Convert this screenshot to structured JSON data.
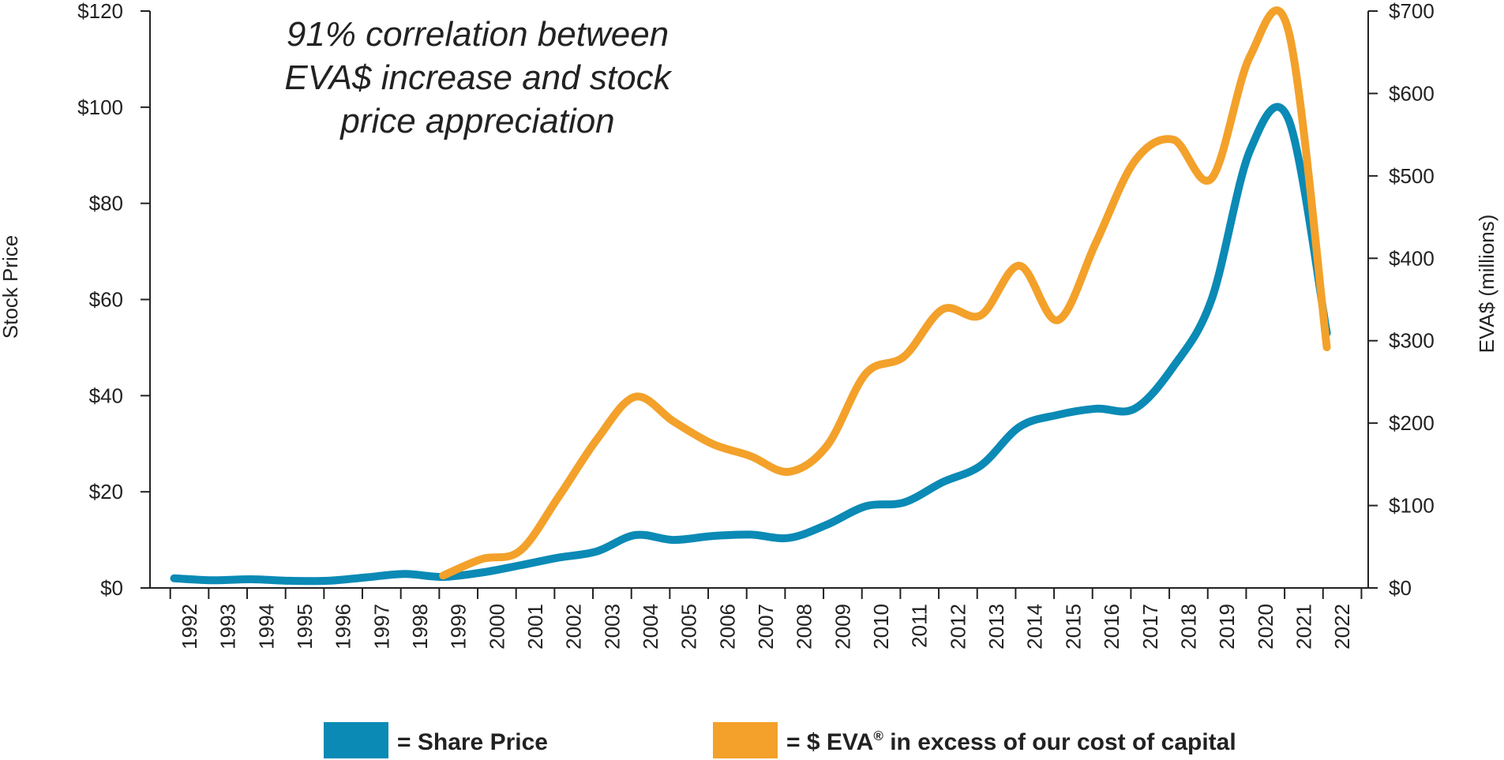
{
  "chart_data": {
    "type": "line",
    "title": "",
    "annotation_lines": [
      "91% correlation between",
      "EVA$ increase and stock",
      "price appreciation"
    ],
    "x": [
      "1992",
      "1993",
      "1994",
      "1995",
      "1996",
      "1997",
      "1998",
      "1999",
      "2000",
      "2001",
      "2002",
      "2003",
      "2004",
      "2005",
      "2006",
      "2007",
      "2008",
      "2009",
      "2010",
      "2011",
      "2012",
      "2013",
      "2014",
      "2015",
      "2016",
      "2017",
      "2018",
      "2019",
      "2020",
      "2021",
      "2022"
    ],
    "xlabel": "",
    "ylabel_left": "Stock Price",
    "ylabel_right": "EVA$ (millions)",
    "ylim_left": [
      0,
      120
    ],
    "ylim_right": [
      0,
      700
    ],
    "yticks_left": [
      "$0",
      "$20",
      "$40",
      "$60",
      "$80",
      "$100",
      "$120"
    ],
    "yticks_left_values": [
      0,
      20,
      40,
      60,
      80,
      100,
      120
    ],
    "yticks_right": [
      "$0",
      "$100",
      "$200",
      "$300",
      "$400",
      "$500",
      "$600",
      "$700"
    ],
    "yticks_right_values": [
      0,
      100,
      200,
      300,
      400,
      500,
      600,
      700
    ],
    "grid": false,
    "legend_position": "bottom",
    "series": [
      {
        "name": "Share Price",
        "axis": "left",
        "color": "#0a8ab5",
        "points": [
          [
            1991.6,
            2
          ],
          [
            1992.6,
            1.6
          ],
          [
            1993.6,
            1.8
          ],
          [
            1994.6,
            1.5
          ],
          [
            1995.6,
            1.5
          ],
          [
            1996.6,
            2.2
          ],
          [
            1997.6,
            2.9
          ],
          [
            1998.6,
            2.3
          ],
          [
            1999.6,
            3.2
          ],
          [
            2000.6,
            4.7
          ],
          [
            2001.6,
            6.3
          ],
          [
            2002.6,
            7.6
          ],
          [
            2003.6,
            11
          ],
          [
            2004.6,
            10
          ],
          [
            2005.6,
            10.8
          ],
          [
            2006.6,
            11.1
          ],
          [
            2007.6,
            10.4
          ],
          [
            2008.6,
            13.2
          ],
          [
            2009.6,
            17
          ],
          [
            2010.6,
            17.8
          ],
          [
            2011.6,
            22
          ],
          [
            2012.6,
            25.5
          ],
          [
            2013.6,
            33.5
          ],
          [
            2014.6,
            36
          ],
          [
            2015.6,
            37.3
          ],
          [
            2016.6,
            37.3
          ],
          [
            2017.6,
            46
          ],
          [
            2018.6,
            60
          ],
          [
            2019.6,
            91
          ],
          [
            2020.6,
            97.5
          ],
          [
            2021.6,
            53
          ]
        ]
      },
      {
        "name": "$ EVA in excess of our cost of capital",
        "axis": "right",
        "color": "#f3a12a",
        "points": [
          [
            1998.6,
            15
          ],
          [
            1999.6,
            35
          ],
          [
            2000.6,
            45
          ],
          [
            2001.6,
            110
          ],
          [
            2002.6,
            180
          ],
          [
            2003.6,
            232
          ],
          [
            2004.6,
            202
          ],
          [
            2005.6,
            175
          ],
          [
            2006.6,
            160
          ],
          [
            2007.6,
            141
          ],
          [
            2008.6,
            173
          ],
          [
            2009.6,
            260
          ],
          [
            2010.6,
            281
          ],
          [
            2011.6,
            338
          ],
          [
            2012.6,
            331
          ],
          [
            2013.6,
            391
          ],
          [
            2014.6,
            325
          ],
          [
            2015.6,
            420
          ],
          [
            2016.6,
            518
          ],
          [
            2017.6,
            544
          ],
          [
            2018.6,
            497
          ],
          [
            2019.6,
            645
          ],
          [
            2020.6,
            676
          ],
          [
            2021.6,
            292
          ]
        ]
      }
    ]
  },
  "legend": {
    "share_price_label": "= Share Price",
    "eva_label_pre": "= $ EVA",
    "eva_label_sup": "®",
    "eva_label_post": " in excess of our cost of capital",
    "share_price_color": "#0a8ab5",
    "eva_color": "#f3a12a"
  }
}
